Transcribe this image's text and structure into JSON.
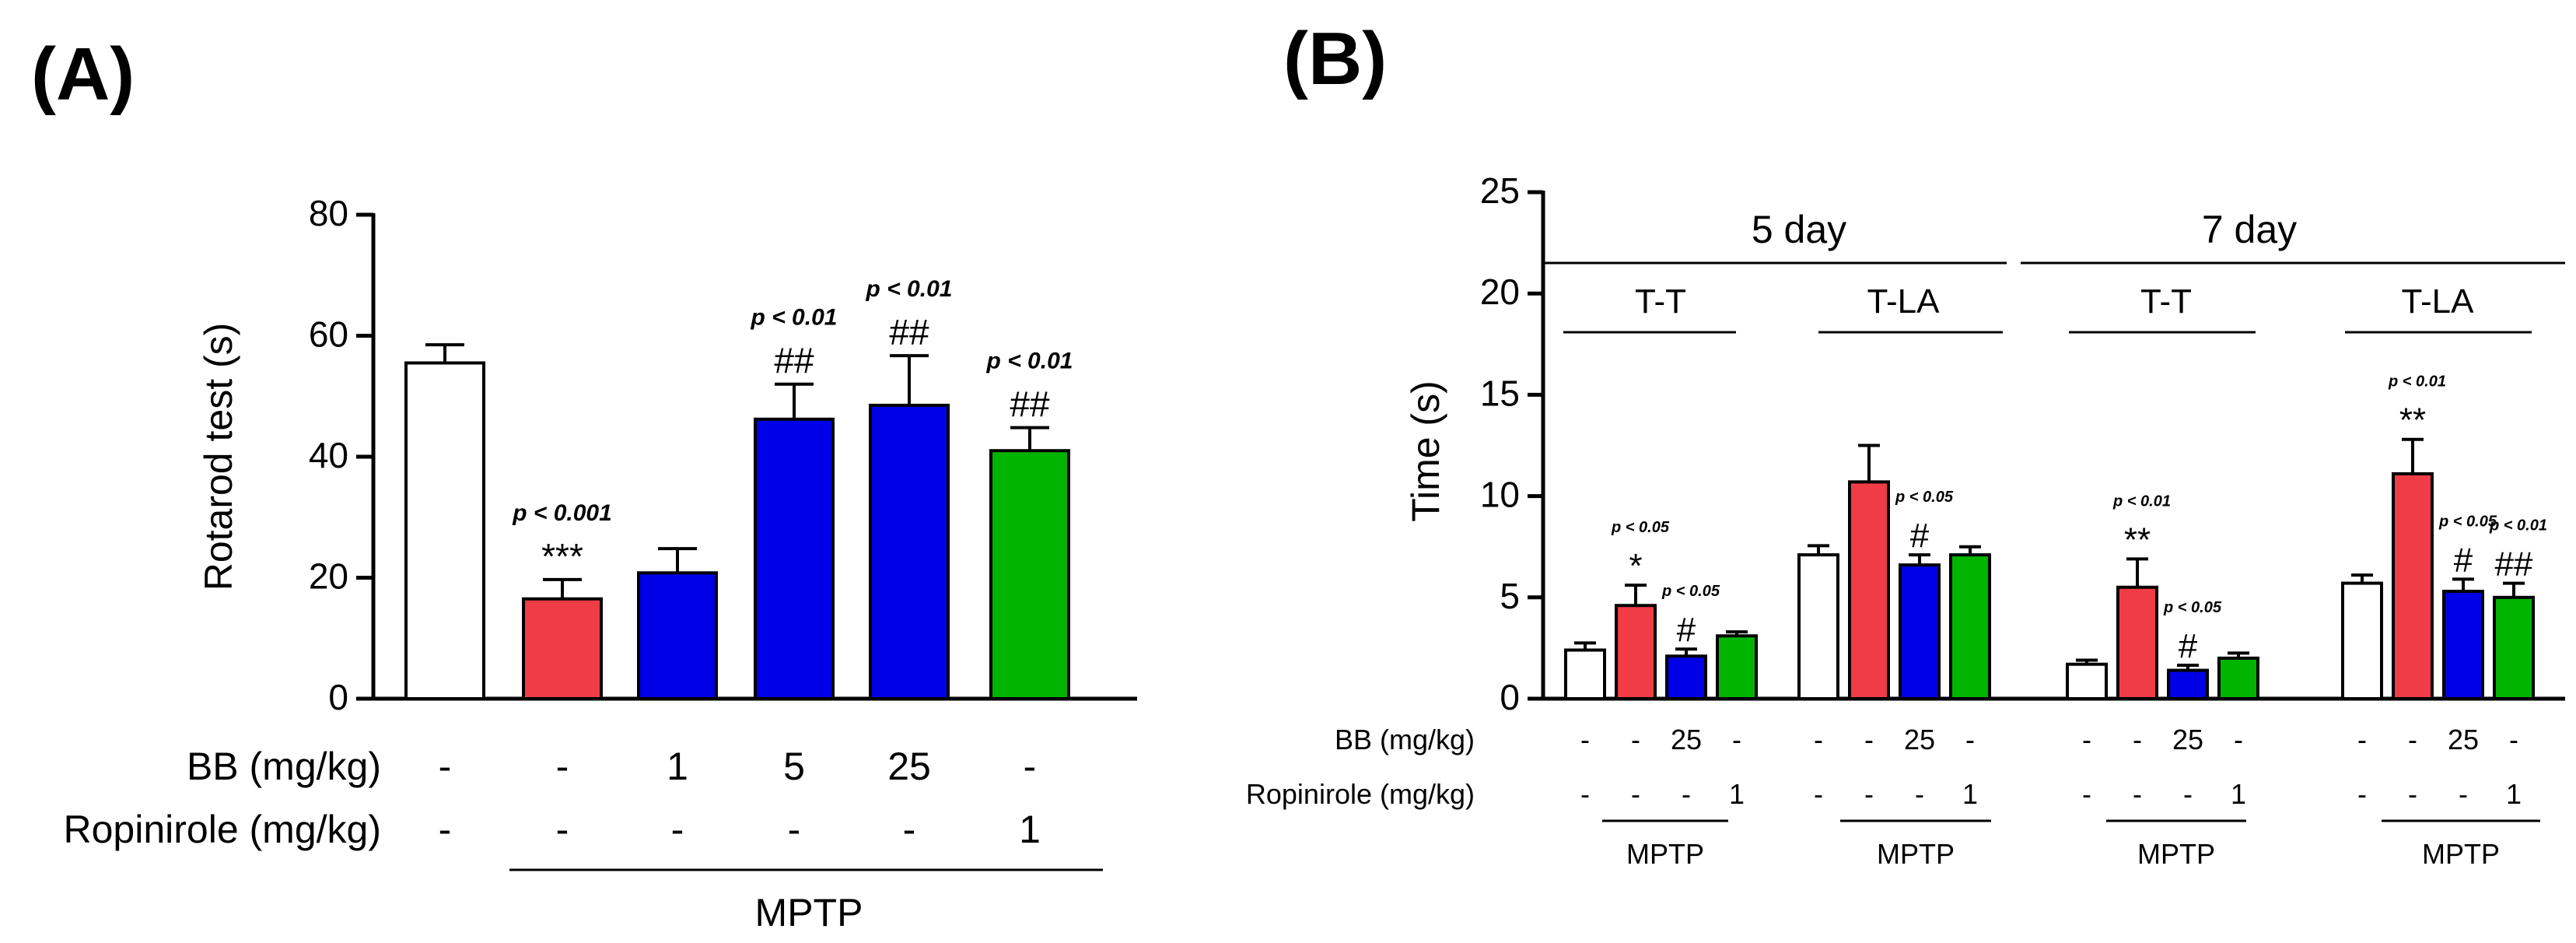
{
  "chart_data": [
    {
      "panel_label": "(A)",
      "type": "bar",
      "ylabel": "Rotarod test (s)",
      "ylim": [
        0,
        80
      ],
      "yticks": [
        "0",
        "20",
        "40",
        "60",
        "80"
      ],
      "values": [
        55.5,
        16.5,
        20.8,
        46.2,
        48.5,
        41.0
      ],
      "errors": [
        3.0,
        3.2,
        4.0,
        5.8,
        8.2,
        3.8
      ],
      "colors": [
        "#ffffff",
        "#f03c46",
        "#0000e6",
        "#0000e6",
        "#0000e6",
        "#00b400"
      ],
      "p_labels": [
        "",
        "p < 0.001",
        "",
        "p < 0.01",
        "p < 0.01",
        "p < 0.01"
      ],
      "sig": [
        "",
        "***",
        "",
        "##",
        "##",
        "##"
      ],
      "rows": [
        {
          "label": "BB (mg/kg)",
          "cells": [
            "-",
            "-",
            "1",
            "5",
            "25",
            "-"
          ]
        },
        {
          "label": "Ropinirole (mg/kg)",
          "cells": [
            "-",
            "-",
            "-",
            "-",
            "-",
            "1"
          ]
        }
      ],
      "group_label": "MPTP"
    },
    {
      "panel_label": "(B)",
      "type": "bar",
      "ylabel": "Time (s)",
      "ylim": [
        0,
        25
      ],
      "yticks": [
        "0",
        "5",
        "10",
        "15",
        "20",
        "25"
      ],
      "day_labels": [
        "5 day",
        "7 day"
      ],
      "test_labels": [
        "T-T",
        "T-LA",
        "T-T",
        "T-LA"
      ],
      "colors": [
        "#ffffff",
        "#f03c46",
        "#0000e6",
        "#00b400"
      ],
      "groups": [
        {
          "values": [
            2.4,
            4.6,
            2.1,
            3.1
          ],
          "errors": [
            0.35,
            1.0,
            0.35,
            0.2
          ],
          "p_labels": [
            "",
            "p < 0.05",
            "p < 0.05",
            ""
          ],
          "sig": [
            "",
            "*",
            "#",
            ""
          ]
        },
        {
          "values": [
            7.1,
            10.7,
            6.6,
            7.1
          ],
          "errors": [
            0.45,
            1.8,
            0.5,
            0.4
          ],
          "p_labels": [
            "",
            "",
            "p < 0.05",
            ""
          ],
          "sig": [
            "",
            "",
            "#",
            ""
          ]
        },
        {
          "values": [
            1.7,
            5.5,
            1.4,
            2.0
          ],
          "errors": [
            0.2,
            1.4,
            0.25,
            0.25
          ],
          "p_labels": [
            "",
            "p < 0.01",
            "p < 0.05",
            ""
          ],
          "sig": [
            "",
            "**",
            "#",
            ""
          ]
        },
        {
          "values": [
            5.7,
            11.1,
            5.3,
            5.0
          ],
          "errors": [
            0.4,
            1.7,
            0.6,
            0.7
          ],
          "p_labels": [
            "",
            "p < 0.01",
            "p < 0.05",
            "p < 0.01"
          ],
          "sig": [
            "",
            "**",
            "#",
            "##"
          ]
        }
      ],
      "rows": [
        {
          "label": "BB (mg/kg)",
          "cells": [
            "-",
            "-",
            "25",
            "-"
          ]
        },
        {
          "label": "Ropinirole (mg/kg)",
          "cells": [
            "-",
            "-",
            "-",
            "1"
          ]
        }
      ],
      "group_label": "MPTP"
    }
  ]
}
